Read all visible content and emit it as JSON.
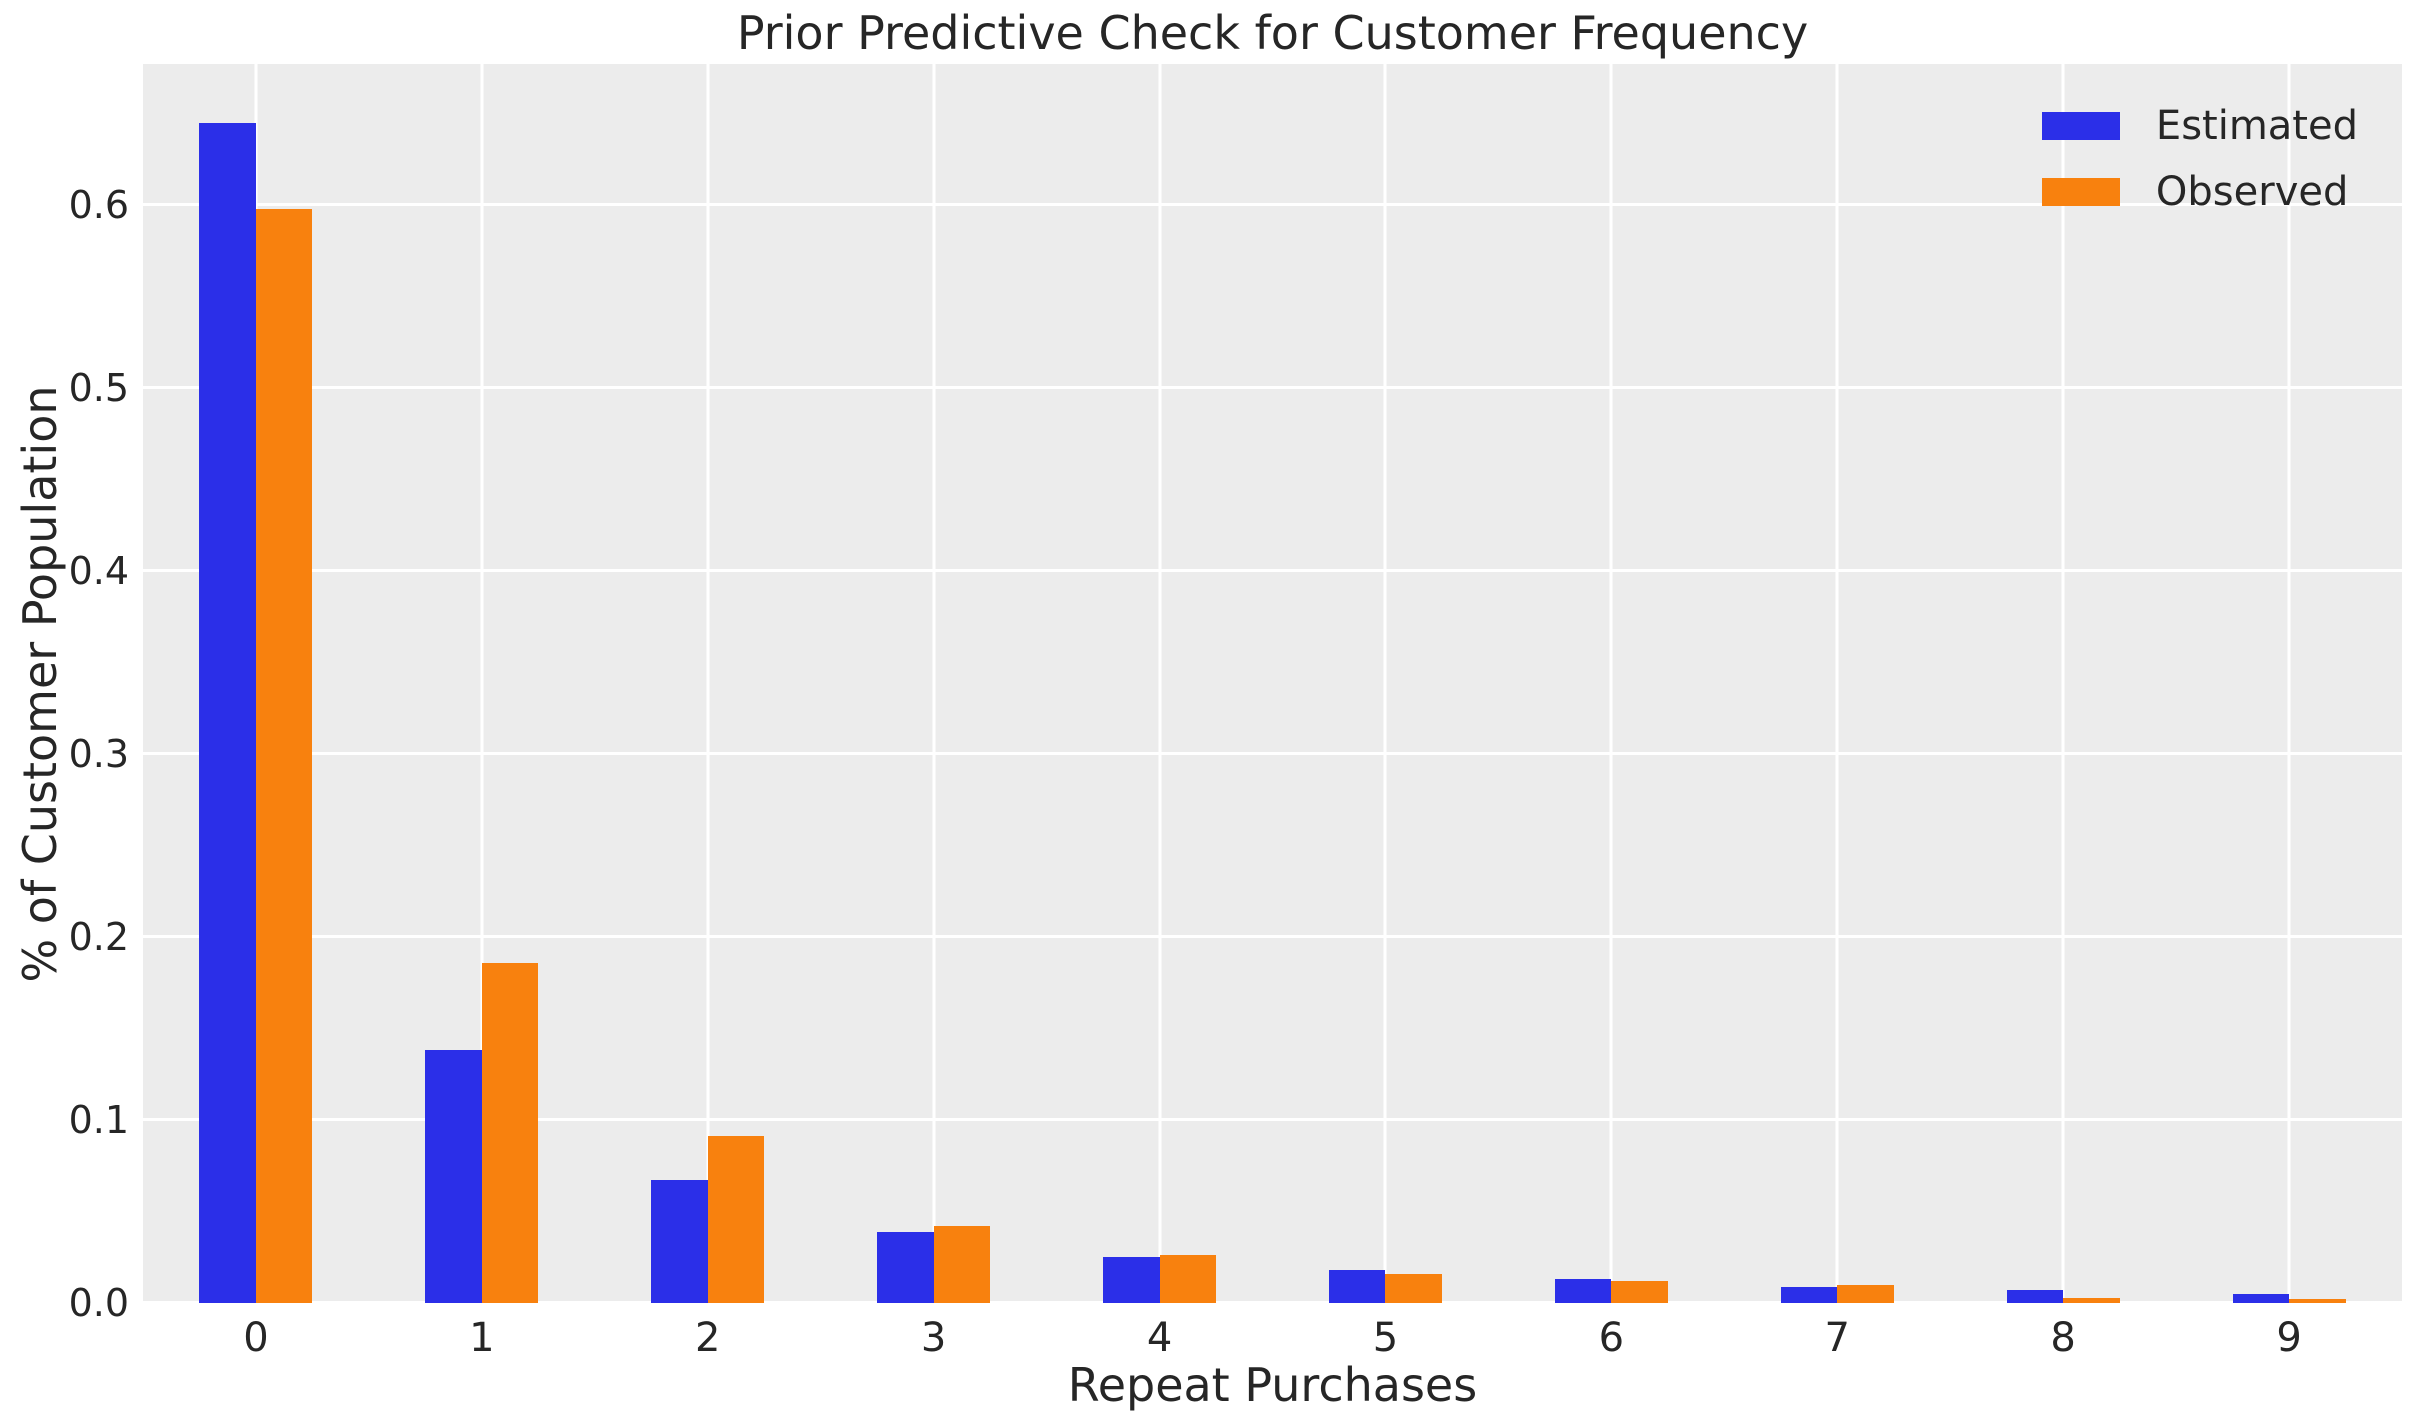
{
  "title": "Prior Predictive Check for Customer Frequency",
  "colors": {
    "estimated": "#2b2fe8",
    "observed": "#f8810e",
    "plot_background": "#ececec",
    "gridline": "#ffffff",
    "text": "#262626"
  },
  "legend": {
    "items": [
      {
        "label": "Estimated",
        "color": "#2b2fe8"
      },
      {
        "label": "Observed",
        "color": "#f8810e"
      }
    ]
  },
  "chart_data": {
    "type": "bar",
    "title": "Prior Predictive Check for Customer Frequency",
    "xlabel": "Repeat Purchases",
    "ylabel": "% of Customer Population",
    "categories": [
      "0",
      "1",
      "2",
      "3",
      "4",
      "5",
      "6",
      "7",
      "8",
      "9"
    ],
    "series": [
      {
        "name": "Estimated",
        "color": "#2b2fe8",
        "values": [
          0.645,
          0.138,
          0.067,
          0.039,
          0.025,
          0.018,
          0.013,
          0.009,
          0.007,
          0.005
        ]
      },
      {
        "name": "Observed",
        "color": "#f8810e",
        "values": [
          0.598,
          0.186,
          0.091,
          0.042,
          0.026,
          0.016,
          0.012,
          0.01,
          0.003,
          0.002
        ]
      }
    ],
    "ylim": [
      0,
      0.677
    ],
    "yticks": [
      0.0,
      0.1,
      0.2,
      0.3,
      0.4,
      0.5,
      0.6
    ],
    "ytick_labels": [
      "0.0",
      "0.1",
      "0.2",
      "0.3",
      "0.4",
      "0.5",
      "0.6"
    ],
    "grid": true,
    "legend_position": "upper right",
    "bar_width_fraction": 0.25
  }
}
